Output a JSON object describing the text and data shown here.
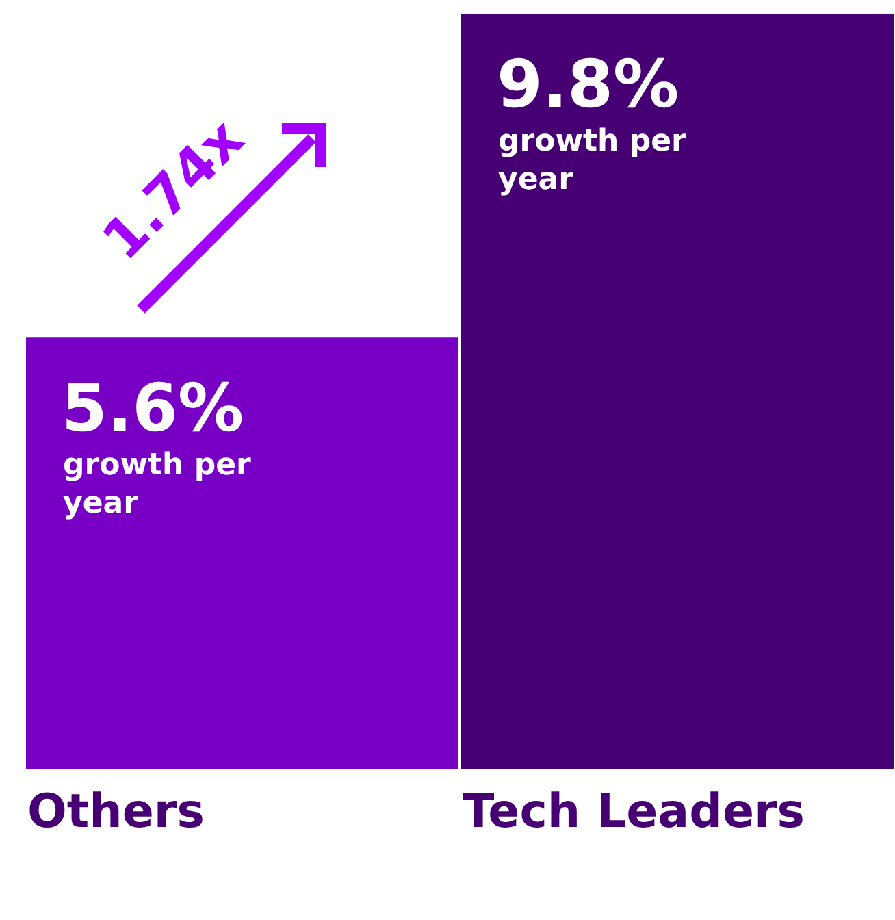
{
  "chart_data": {
    "type": "bar",
    "categories": [
      "Others",
      "Tech Leaders"
    ],
    "values": [
      5.6,
      9.8
    ],
    "colors": [
      "#7800c4",
      "#460073"
    ],
    "value_labels": [
      "5.6%",
      "9.8%"
    ],
    "ylim": [
      0,
      9.8
    ],
    "annotations": [
      "growth per year",
      "growth per year",
      "1.74x"
    ]
  }
}
